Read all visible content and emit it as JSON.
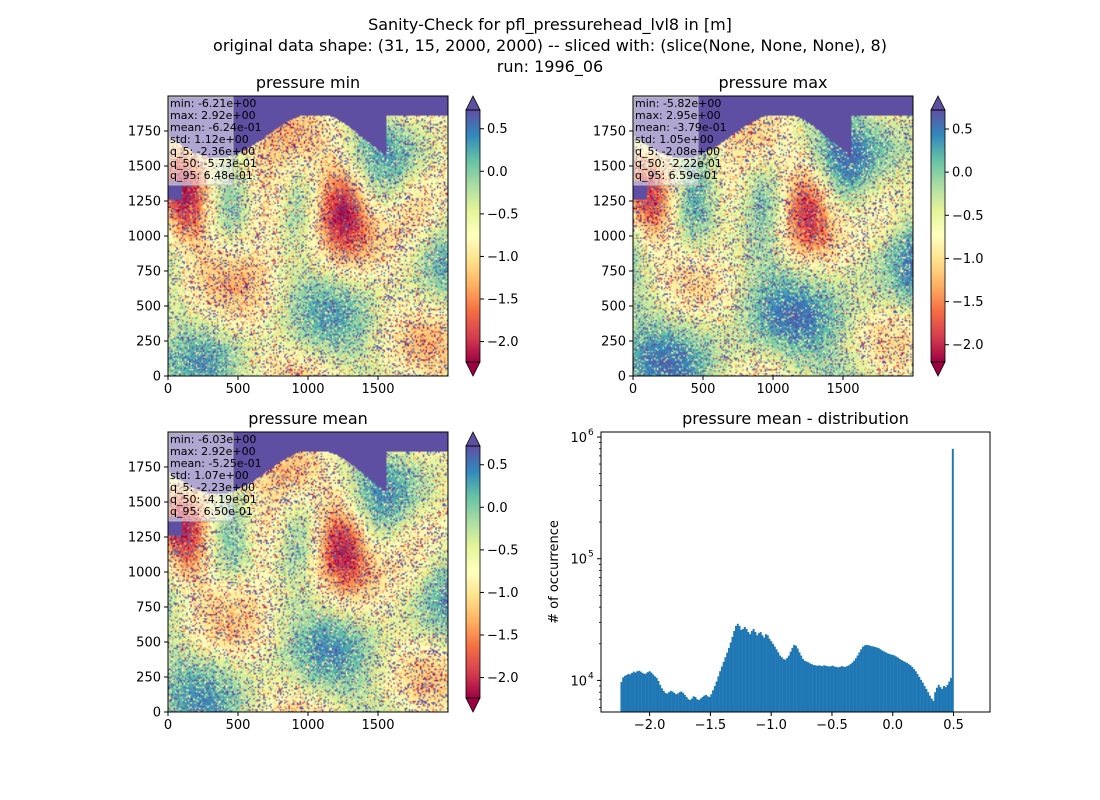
{
  "figure": {
    "title_lines": [
      "Sanity-Check for pfl_pressurehead_lvl8 in [m]",
      "original data shape: (31, 15, 2000, 2000) -- sliced with: (slice(None, None, None), 8)",
      "run: 1996_06"
    ]
  },
  "colormap": {
    "name": "Spectral",
    "stops": [
      "#9e0142",
      "#d53e4f",
      "#f46d43",
      "#fdae61",
      "#fee08b",
      "#ffffbf",
      "#e6f598",
      "#abdda4",
      "#66c2a5",
      "#3288bd",
      "#5e4fa2"
    ],
    "ocean_color": "#5e4fa2"
  },
  "chart_data": [
    {
      "type": "heatmap",
      "title": "pressure min",
      "xlim": [
        0,
        2000
      ],
      "ylim": [
        0,
        2000
      ],
      "xticks": [
        0,
        500,
        1000,
        1500
      ],
      "xtick_labels": [
        "0",
        "500",
        "1000",
        "1500"
      ],
      "yticks": [
        0,
        250,
        500,
        750,
        1000,
        1250,
        1500,
        1750
      ],
      "ytick_labels": [
        "0",
        "250",
        "500",
        "750",
        "1000",
        "1250",
        "1500",
        "1750"
      ],
      "clim": [
        -2.24,
        0.72
      ],
      "colorbar_ticks": [
        0.5,
        0.0,
        -0.5,
        -1.0,
        -1.5,
        -2.0
      ],
      "colorbar_labels": [
        "0.5",
        "0.0",
        "−0.5",
        "−1.0",
        "−1.5",
        "−2.0"
      ],
      "colorbar_extend": "both",
      "stats": [
        "min: -6.21e+00",
        "max: 2.92e+00",
        "mean: -6.24e-01",
        "std: 1.12e+00",
        "q_5: -2.36e+00",
        "q_50: -5.73e-01",
        "q_95: 6.48e-01"
      ],
      "stats_placement": "top-left"
    },
    {
      "type": "heatmap",
      "title": "pressure max",
      "xlim": [
        0,
        2000
      ],
      "ylim": [
        0,
        2000
      ],
      "xticks": [
        0,
        500,
        1000,
        1500
      ],
      "xtick_labels": [
        "0",
        "500",
        "1000",
        "1500"
      ],
      "yticks": [
        0,
        250,
        500,
        750,
        1000,
        1250,
        1500,
        1750
      ],
      "ytick_labels": [
        "0",
        "250",
        "500",
        "750",
        "1000",
        "1250",
        "1500",
        "1750"
      ],
      "clim": [
        -2.2,
        0.72
      ],
      "colorbar_ticks": [
        0.5,
        0.0,
        -0.5,
        -1.0,
        -1.5,
        -2.0
      ],
      "colorbar_labels": [
        "0.5",
        "0.0",
        "−0.5",
        "−1.0",
        "−1.5",
        "−2.0"
      ],
      "colorbar_extend": "both",
      "stats": [
        "min: -5.82e+00",
        "max: 2.95e+00",
        "mean: -3.79e-01",
        "std: 1.05e+00",
        "q_5: -2.08e+00",
        "q_50: -2.22e-01",
        "q_95: 6.59e-01"
      ],
      "stats_placement": "top-left"
    },
    {
      "type": "heatmap",
      "title": "pressure mean",
      "xlim": [
        0,
        2000
      ],
      "ylim": [
        0,
        2000
      ],
      "xticks": [
        0,
        500,
        1000,
        1500
      ],
      "xtick_labels": [
        "0",
        "500",
        "1000",
        "1500"
      ],
      "yticks": [
        0,
        250,
        500,
        750,
        1000,
        1250,
        1500,
        1750
      ],
      "ytick_labels": [
        "0",
        "250",
        "500",
        "750",
        "1000",
        "1250",
        "1500",
        "1750"
      ],
      "clim": [
        -2.24,
        0.72
      ],
      "colorbar_ticks": [
        0.5,
        0.0,
        -0.5,
        -1.0,
        -1.5,
        -2.0
      ],
      "colorbar_labels": [
        "0.5",
        "0.0",
        "−0.5",
        "−1.0",
        "−1.5",
        "−2.0"
      ],
      "colorbar_extend": "both",
      "stats": [
        "min: -6.03e+00",
        "max: 2.92e+00",
        "mean: -5.25e-01",
        "std: 1.07e+00",
        "q_5: -2.23e+00",
        "q_50: -4.19e-01",
        "q_95: 6.50e-01"
      ],
      "stats_placement": "top-left"
    },
    {
      "type": "bar",
      "title": "pressure mean - distribution",
      "ylabel": "# of occurrence",
      "yscale": "log",
      "xlim": [
        -2.4,
        0.8
      ],
      "ylim": [
        5500,
        1100000
      ],
      "xticks": [
        -2.0,
        -1.5,
        -1.0,
        -0.5,
        0.0,
        0.5
      ],
      "xtick_labels": [
        "−2.0",
        "−1.5",
        "−1.0",
        "−0.5",
        "0.0",
        "0.5"
      ],
      "yticks": [
        10000,
        100000,
        1000000
      ],
      "ytick_labels": [
        "10",
        "10",
        "10"
      ],
      "ytick_exponents": [
        "4",
        "5",
        "6"
      ],
      "bar_color": "#1f77b4",
      "bin_start": -2.24,
      "bin_width": 0.0145,
      "values": [
        9700,
        10600,
        10900,
        11100,
        11300,
        11200,
        11500,
        11800,
        11600,
        11900,
        12000,
        11800,
        11500,
        11300,
        11400,
        11700,
        11900,
        11600,
        11200,
        10800,
        10500,
        9900,
        9200,
        8600,
        8200,
        7900,
        7800,
        8000,
        8200,
        8100,
        7900,
        7700,
        7800,
        8000,
        8100,
        7900,
        7600,
        7300,
        7000,
        6900,
        7100,
        7400,
        7300,
        7000,
        6900,
        7100,
        7300,
        7500,
        7600,
        7400,
        7300,
        7700,
        8300,
        9000,
        9800,
        10800,
        11900,
        13000,
        14200,
        15500,
        16900,
        18500,
        20500,
        22800,
        25500,
        28000,
        29200,
        28000,
        26000,
        26500,
        27500,
        26500,
        25000,
        24000,
        25500,
        26500,
        25000,
        23500,
        24500,
        25000,
        23500,
        22500,
        24000,
        23500,
        22000,
        21000,
        20000,
        19000,
        18000,
        17000,
        16000,
        15500,
        15000,
        14800,
        15300,
        16000,
        17200,
        18500,
        19600,
        19300,
        18300,
        17000,
        16000,
        15000,
        14500,
        14300,
        14100,
        13800,
        13600,
        13400,
        13300,
        13200,
        13300,
        13200,
        13100,
        13300,
        13200,
        13100,
        13000,
        13100,
        13200,
        13000,
        12900,
        12800,
        12900,
        13100,
        13000,
        12900,
        13100,
        13300,
        13600,
        14000,
        14500,
        15200,
        16000,
        17000,
        18000,
        18900,
        19400,
        19600,
        19500,
        19300,
        19100,
        19000,
        18800,
        18600,
        18400,
        18000,
        17600,
        17300,
        17000,
        16700,
        16500,
        16300,
        16200,
        16000,
        15700,
        15400,
        15000,
        14700,
        14400,
        14200,
        13900,
        13600,
        13300,
        12900,
        12400,
        11900,
        11300,
        10700,
        10100,
        9600,
        9000,
        8500,
        8000,
        7500,
        7100,
        6800,
        8000,
        8700,
        9200,
        8800,
        8500,
        9000,
        8800,
        9200,
        9800,
        10500,
        800000
      ]
    }
  ]
}
